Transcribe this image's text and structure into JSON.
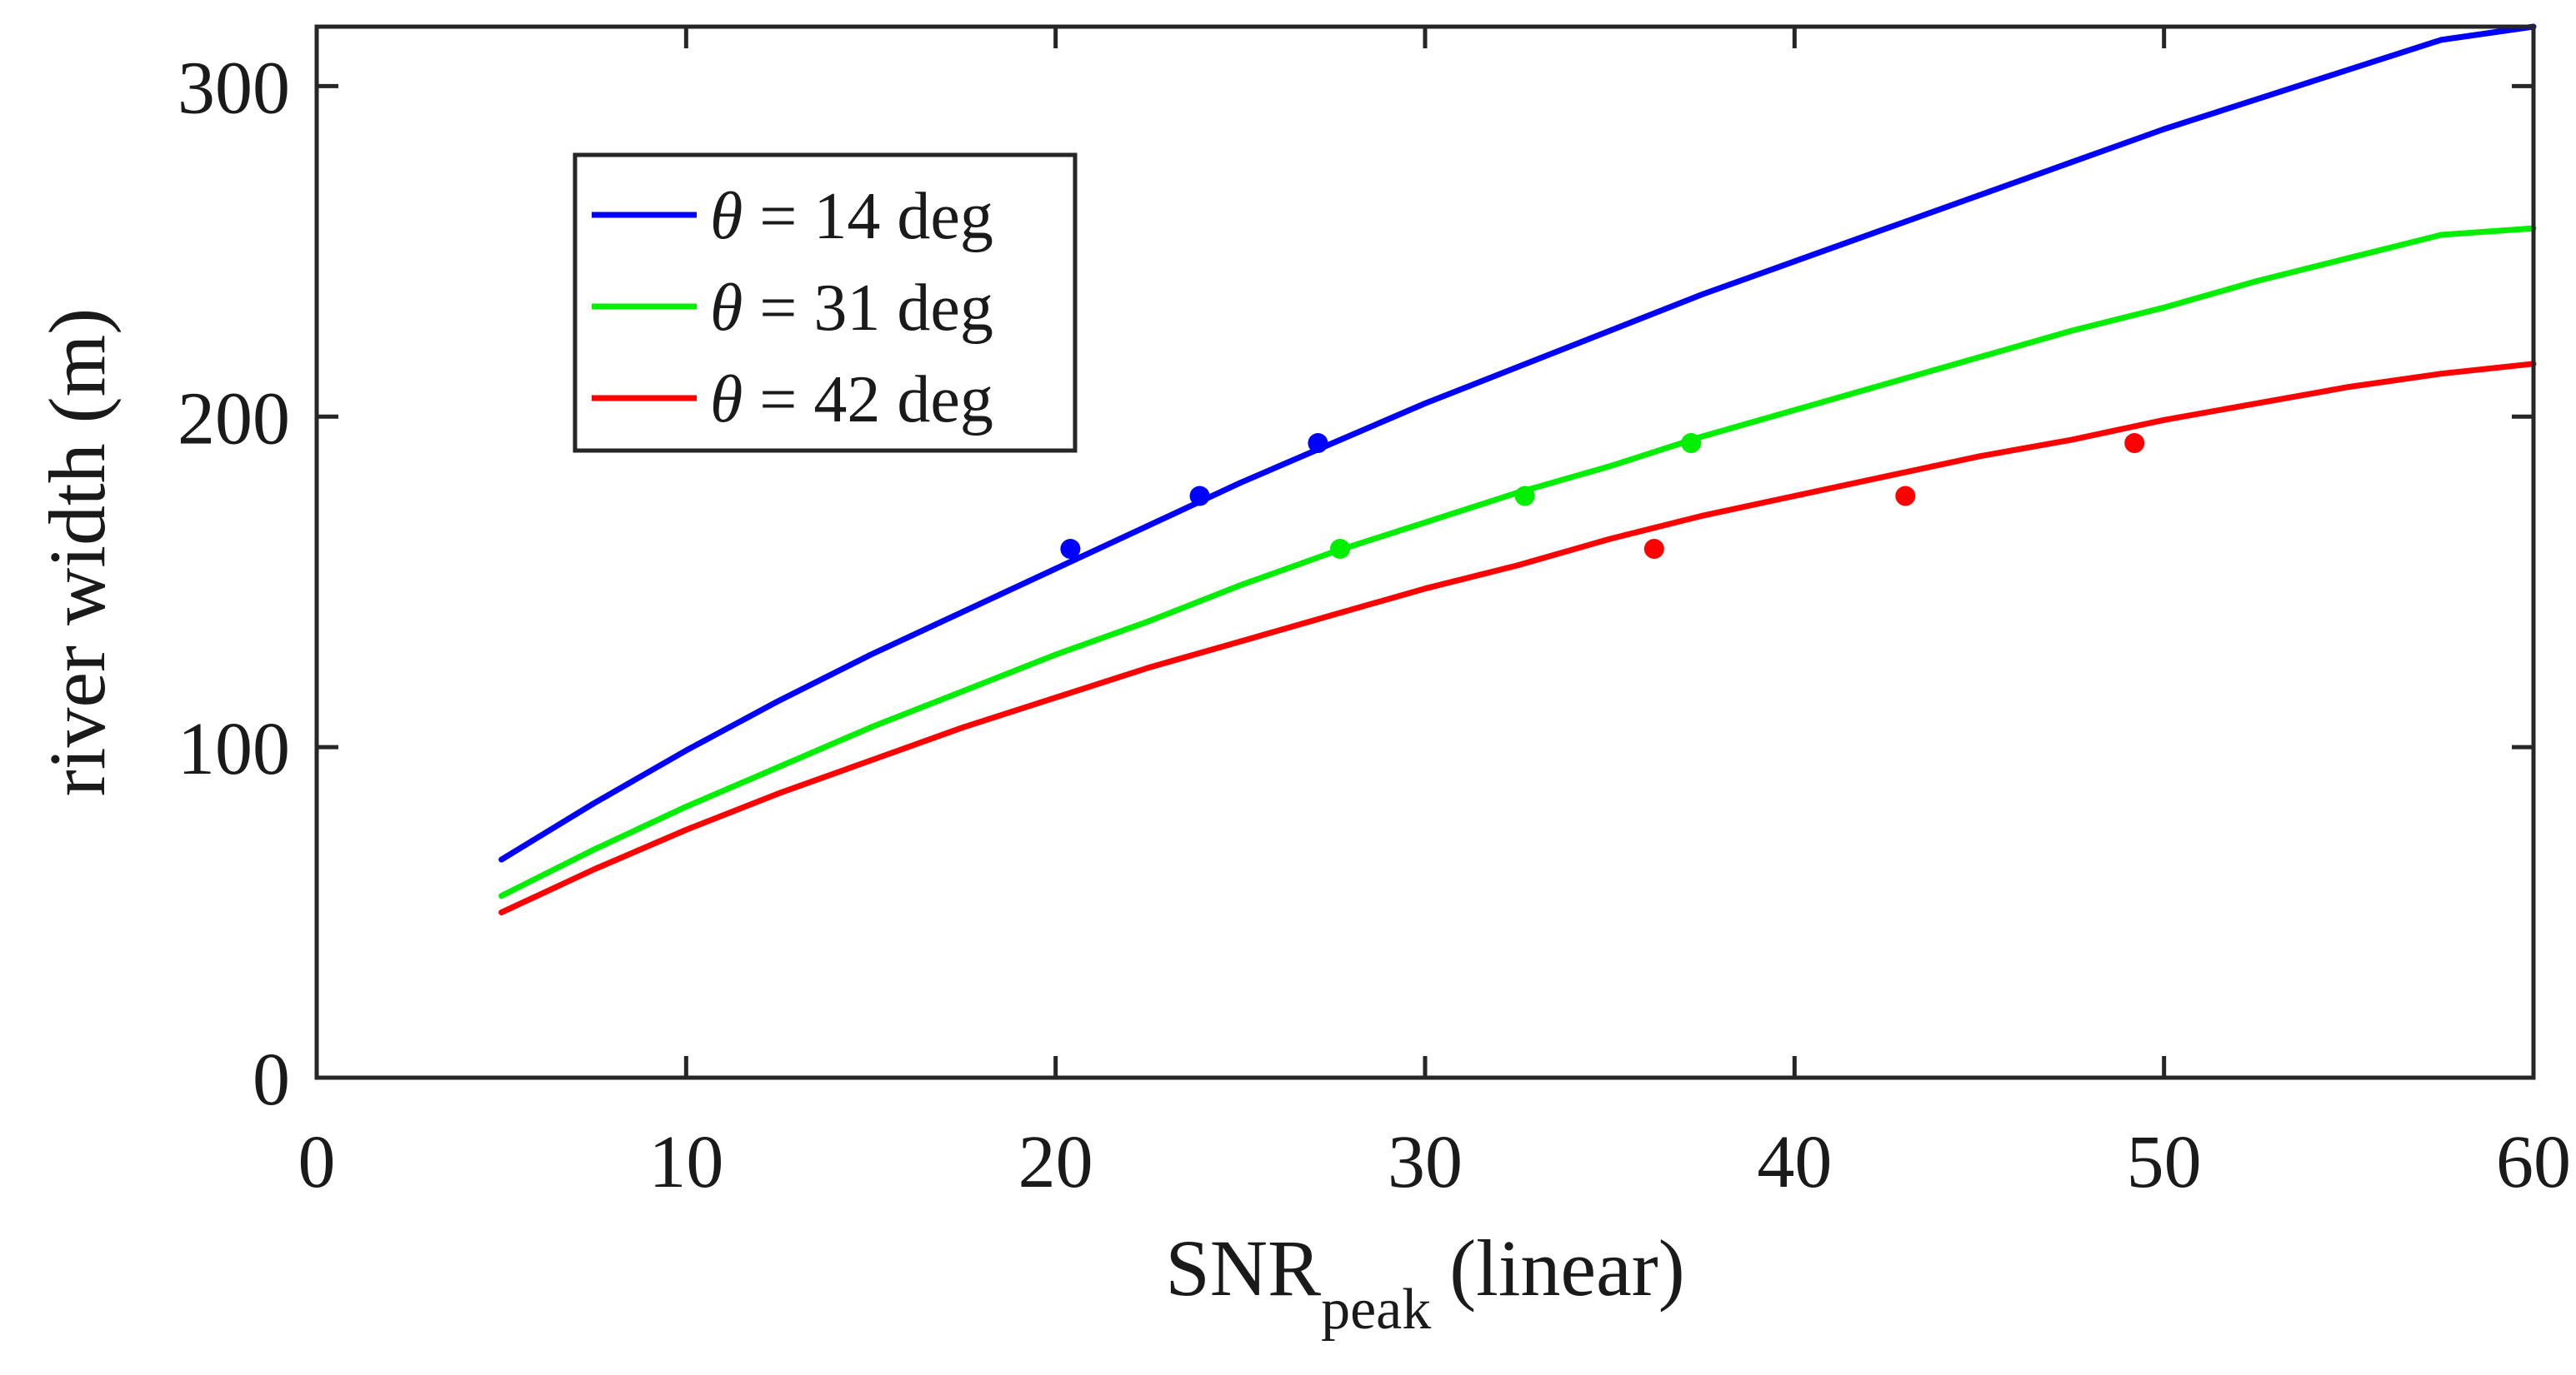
{
  "chart_data": {
    "type": "line",
    "xlabel": {
      "main": "SNR",
      "sub": "peak",
      "suffix": "(linear)"
    },
    "ylabel": "river width (m)",
    "xlim": [
      0,
      60
    ],
    "ylim": [
      0,
      318
    ],
    "xticks": [
      0,
      10,
      20,
      30,
      40,
      50,
      60
    ],
    "yticks": [
      0,
      100,
      200,
      300
    ],
    "xtick_labels": [
      "0",
      "10",
      "20",
      "30",
      "40",
      "50",
      "60"
    ],
    "ytick_labels": [
      "0",
      "100",
      "200",
      "300"
    ],
    "grid": false,
    "legend_placement": "top-left",
    "series": [
      {
        "name": "θ = 14 deg",
        "legend_symbol": "θ",
        "legend_rest": " = 14 deg",
        "color": "#0000ff",
        "x": [
          5,
          7.5,
          10,
          12.5,
          15,
          17.5,
          20,
          22.5,
          25,
          27.5,
          30,
          32.5,
          35,
          37.5,
          40,
          42.5,
          45,
          47.5,
          50,
          52.5,
          55,
          57.5,
          60
        ],
        "y": [
          66,
          83,
          99,
          114,
          128,
          141,
          154,
          167,
          180,
          192,
          204,
          215,
          226,
          237,
          247,
          257,
          267,
          277,
          287,
          296,
          305,
          314,
          318
        ],
        "markers": [
          {
            "x": 20.4,
            "y": 160
          },
          {
            "x": 23.9,
            "y": 176
          },
          {
            "x": 27.1,
            "y": 192
          }
        ]
      },
      {
        "name": "θ = 31 deg",
        "legend_symbol": "θ",
        "legend_rest": " = 31 deg",
        "color": "#00ee00",
        "x": [
          5,
          7.5,
          10,
          12.5,
          15,
          17.5,
          20,
          22.5,
          25,
          27.5,
          30,
          32.5,
          35,
          37.5,
          40,
          42.5,
          45,
          47.5,
          50,
          52.5,
          55,
          57.5,
          60
        ],
        "y": [
          55,
          69,
          82,
          94,
          106,
          117,
          128,
          138,
          149,
          159,
          168,
          177,
          185,
          194,
          202,
          210,
          218,
          226,
          233,
          241,
          248,
          255,
          257
        ],
        "markers": [
          {
            "x": 27.7,
            "y": 160
          },
          {
            "x": 32.7,
            "y": 176
          },
          {
            "x": 37.2,
            "y": 192
          }
        ]
      },
      {
        "name": "θ = 42 deg",
        "legend_symbol": "θ",
        "legend_rest": " = 42 deg",
        "color": "#ff0000",
        "x": [
          5,
          7.5,
          10,
          12.5,
          15,
          17.5,
          20,
          22.5,
          25,
          27.5,
          30,
          32.5,
          35,
          37.5,
          40,
          42.5,
          45,
          47.5,
          50,
          52.5,
          55,
          57.5,
          60
        ],
        "y": [
          50,
          63,
          75,
          86,
          96,
          106,
          115,
          124,
          132,
          140,
          148,
          155,
          163,
          170,
          176,
          182,
          188,
          193,
          199,
          204,
          209,
          213,
          216
        ],
        "markers": [
          {
            "x": 36.2,
            "y": 160
          },
          {
            "x": 43,
            "y": 176
          },
          {
            "x": 49.2,
            "y": 192
          }
        ]
      }
    ]
  }
}
